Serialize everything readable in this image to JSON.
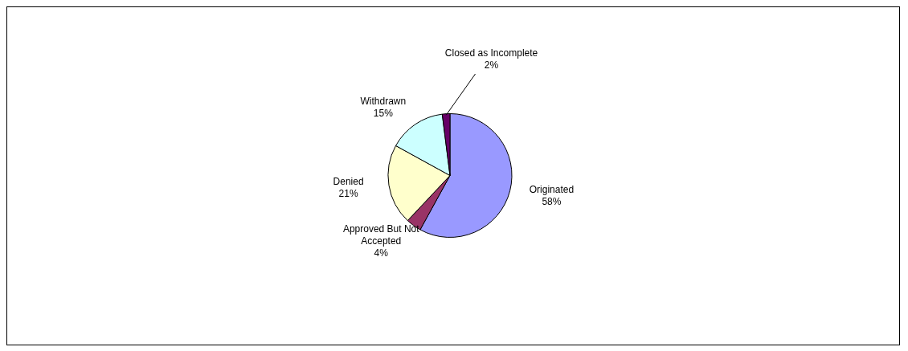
{
  "chart_data": {
    "type": "pie",
    "categories": [
      "Originated",
      "Approved But Not Accepted",
      "Denied",
      "Withdrawn",
      "Closed as Incomplete"
    ],
    "values": [
      58,
      4,
      21,
      15,
      2
    ],
    "value_labels": [
      "58%",
      "4%",
      "21%",
      "15%",
      "2%"
    ],
    "colors": [
      "#9999ff",
      "#993366",
      "#ffffcc",
      "#ccffff",
      "#660066"
    ],
    "legend": false
  }
}
